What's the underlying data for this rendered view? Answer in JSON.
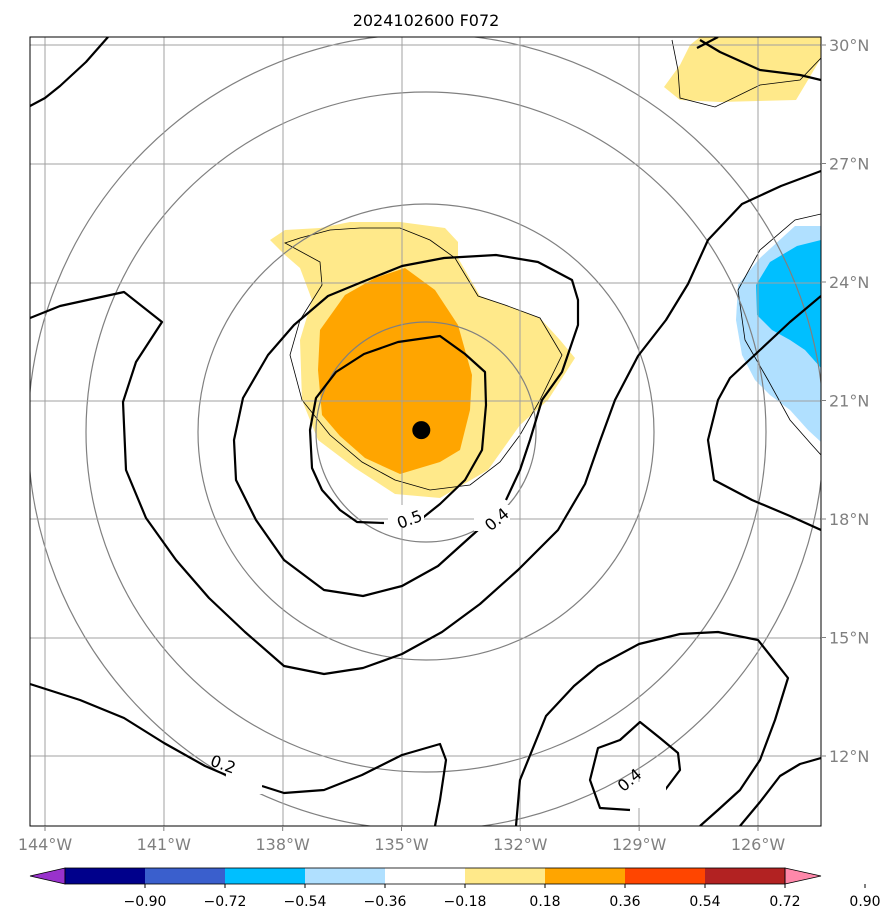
{
  "chart_data": {
    "type": "contour-map",
    "title": "2024102600 F072",
    "lon_range": [
      -144.5,
      -124.5
    ],
    "lat_range": [
      10,
      30
    ],
    "x_ticks": [
      {
        "value": -144,
        "label": "144°W"
      },
      {
        "value": -141,
        "label": "141°W"
      },
      {
        "value": -138,
        "label": "138°W"
      },
      {
        "value": -135,
        "label": "135°W"
      },
      {
        "value": -132,
        "label": "132°W"
      },
      {
        "value": -129,
        "label": "129°W"
      },
      {
        "value": -126,
        "label": "126°W"
      }
    ],
    "y_ticks": [
      {
        "value": 30,
        "label": "30°N"
      },
      {
        "value": 27,
        "label": "27°N"
      },
      {
        "value": 24,
        "label": "24°N"
      },
      {
        "value": 21,
        "label": "21°N"
      },
      {
        "value": 18,
        "label": "18°N"
      },
      {
        "value": 15,
        "label": "15°N"
      },
      {
        "value": 12,
        "label": "12°N"
      }
    ],
    "grid": true,
    "center_marker": {
      "lon": -134.5,
      "lat": 20.25
    },
    "colorbar": {
      "extend": "both",
      "levels": [
        "−0.90",
        "−0.72",
        "−0.54",
        "−0.36",
        "−0.18",
        "0.18",
        "0.36",
        "0.54",
        "0.72",
        "0.90"
      ],
      "colors": [
        "#9932cc",
        "#00008b",
        "#3a5fcd",
        "#00bfff",
        "#b0e0ff",
        "#ffffff",
        "#ffe98a",
        "#ffa500",
        "#ff4500",
        "#b22222",
        "#ff88aa"
      ]
    },
    "contour_labels": [
      {
        "text": "0.5",
        "lon": -134.8,
        "lat": 18.0
      },
      {
        "text": "0.4",
        "lon": -132.6,
        "lat": 18.0
      },
      {
        "text": "0.2",
        "lon": -139.5,
        "lat": 11.8
      },
      {
        "text": "0.4",
        "lon": -129.25,
        "lat": 11.4
      }
    ],
    "range_circle_radii_deg": [
      2.5,
      5,
      7.5,
      10
    ]
  }
}
